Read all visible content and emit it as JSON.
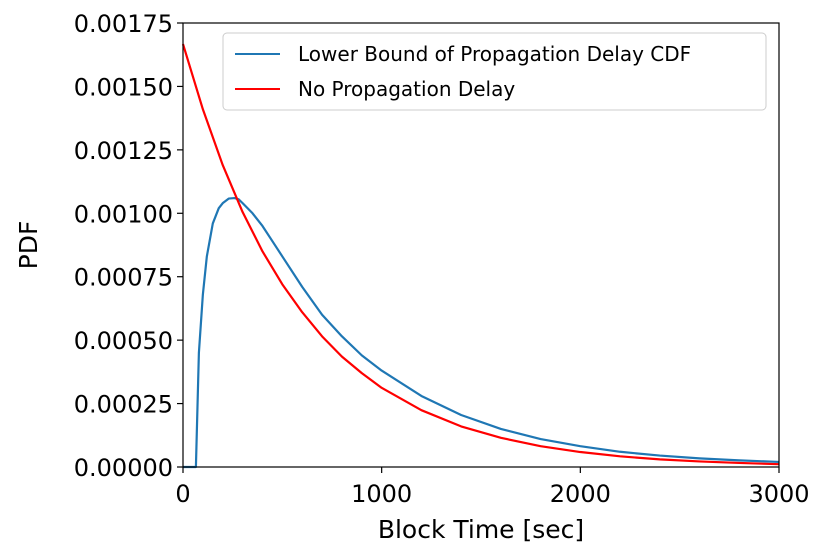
{
  "chart_data": {
    "type": "line",
    "xlabel": "Block Time [sec]",
    "ylabel": "PDF",
    "xlim": [
      0,
      3000
    ],
    "ylim": [
      0,
      0.00175
    ],
    "x_ticks": [
      "0",
      "1000",
      "2000",
      "3000"
    ],
    "y_ticks": [
      "0.00000",
      "0.00025",
      "0.00050",
      "0.00075",
      "0.00100",
      "0.00125",
      "0.00150",
      "0.00175"
    ],
    "grid": false,
    "legend_position": "top-right",
    "series": [
      {
        "name": "Lower Bound of Propagation Delay CDF",
        "color": "#1f77b4",
        "x": [
          0,
          60,
          65,
          80,
          100,
          120,
          150,
          180,
          200,
          230,
          260,
          280,
          300,
          350,
          400,
          450,
          500,
          600,
          700,
          800,
          900,
          1000,
          1200,
          1400,
          1600,
          1800,
          2000,
          2200,
          2400,
          2600,
          2800,
          3000
        ],
        "y": [
          0,
          0,
          0,
          0.00045,
          0.00068,
          0.00083,
          0.00096,
          0.00102,
          0.00104,
          0.001058,
          0.00106,
          0.001055,
          0.00104,
          0.001,
          0.00095,
          0.00089,
          0.00083,
          0.00071,
          0.0006,
          0.000515,
          0.00044,
          0.00038,
          0.00028,
          0.000205,
          0.00015,
          0.00011,
          8.2e-05,
          6e-05,
          4.5e-05,
          3.4e-05,
          2.6e-05,
          2e-05
        ]
      },
      {
        "name": "No Propagation Delay",
        "color": "#ff0000",
        "x": [
          0,
          100,
          200,
          300,
          400,
          500,
          600,
          700,
          800,
          900,
          1000,
          1200,
          1400,
          1600,
          1800,
          2000,
          2200,
          2400,
          2600,
          2800,
          3000
        ],
        "y": [
          0.001667,
          0.00141,
          0.00119,
          0.001005,
          0.00085,
          0.00072,
          0.00061,
          0.000515,
          0.000435,
          0.00037,
          0.000312,
          0.000224,
          0.00016,
          0.000115,
          8.2e-05,
          5.9e-05,
          4.2e-05,
          3e-05,
          2.2e-05,
          1.6e-05,
          1.1e-05
        ]
      }
    ]
  }
}
